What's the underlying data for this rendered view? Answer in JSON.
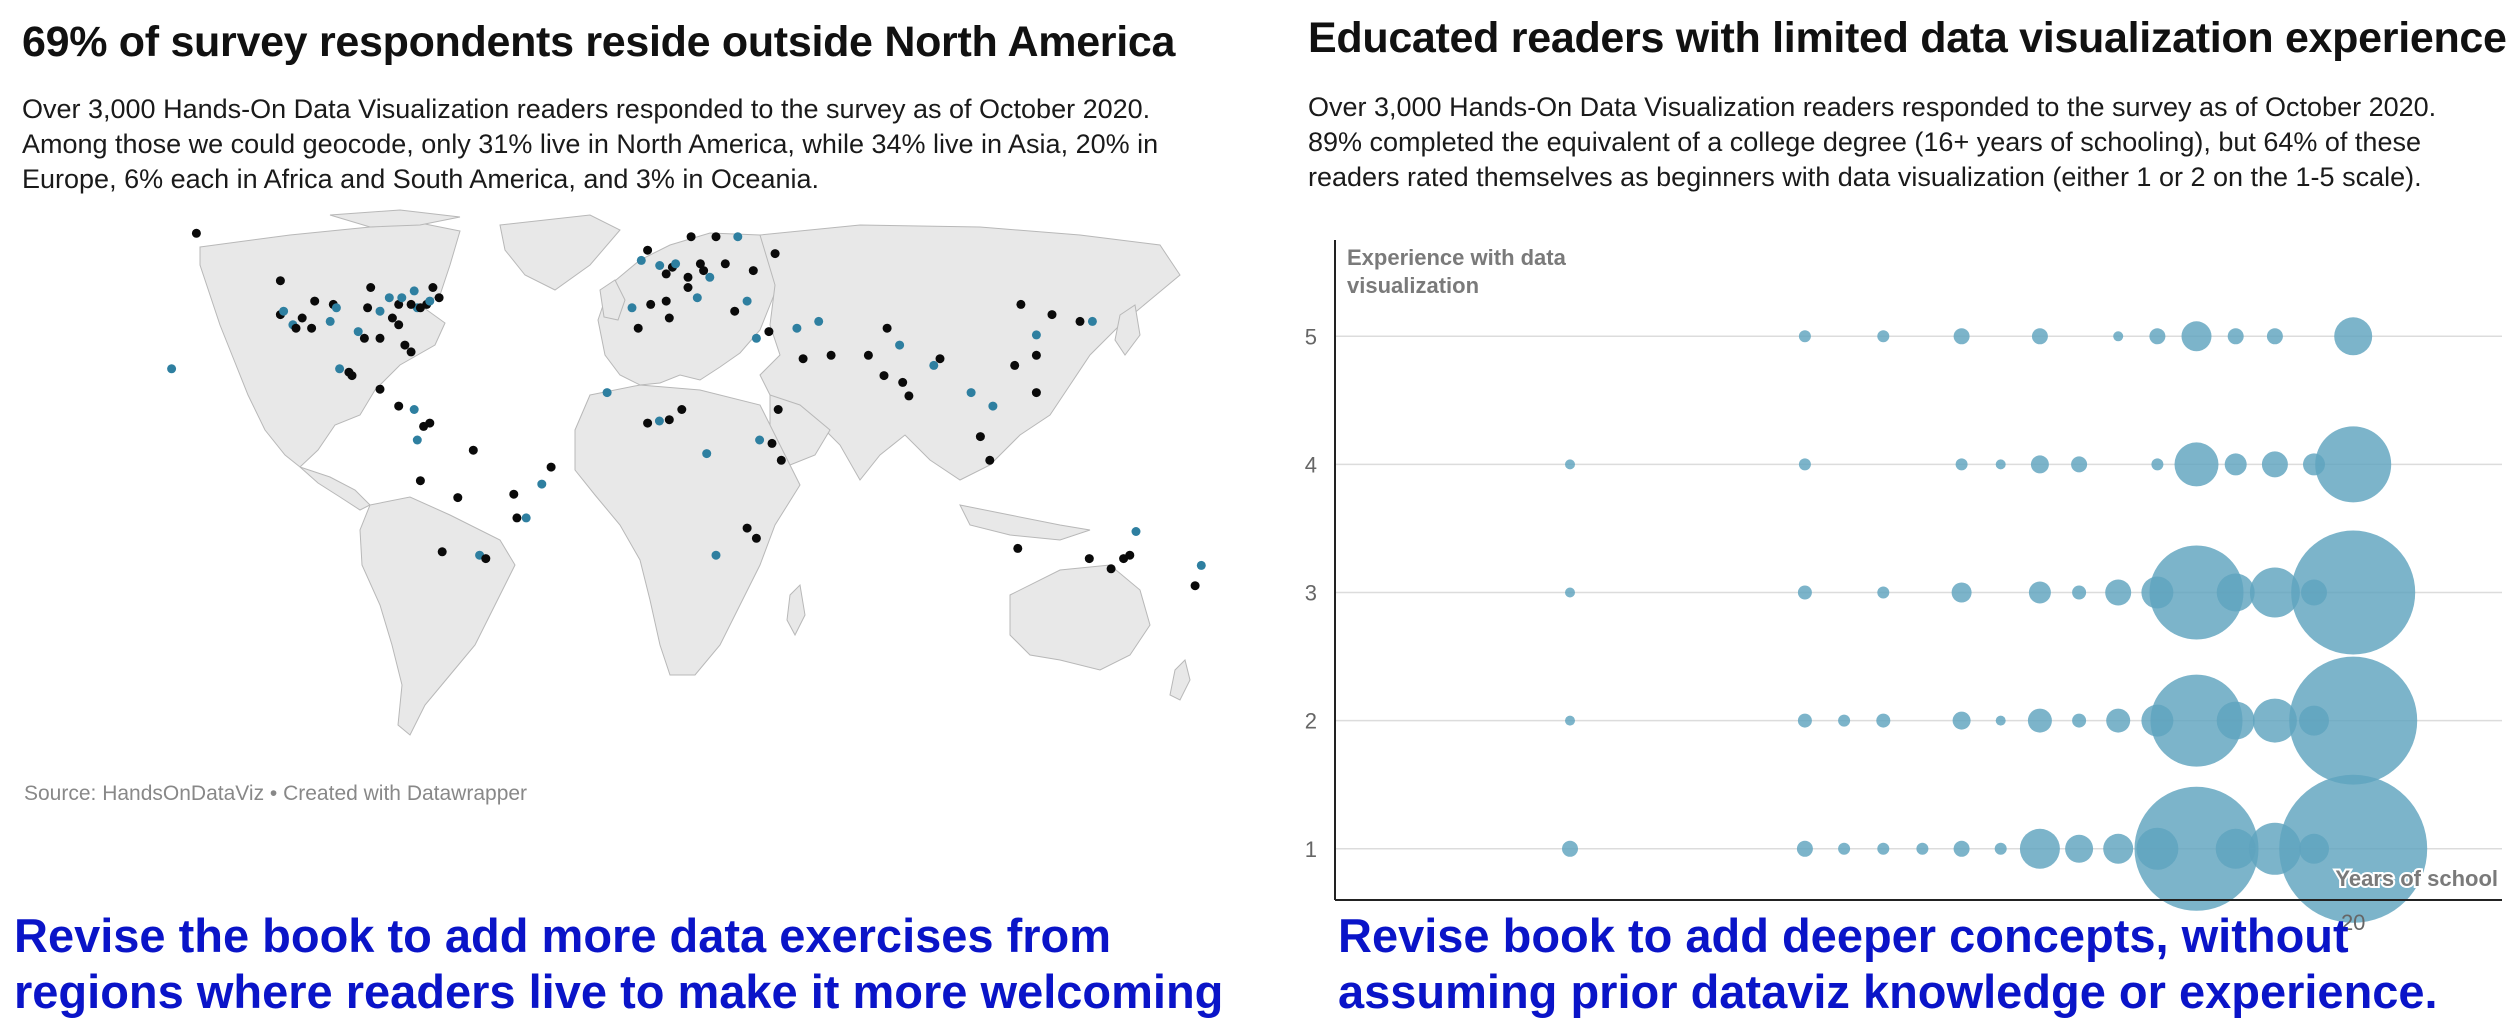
{
  "left": {
    "title": "69% of survey respondents reside outside North America",
    "description": [
      "Over 3,000 Hands-On Data Visualization readers responded to the survey as of October 2020.",
      "Among those we could geocode, only 31% live in North America, while 34% live in Asia, 20% in",
      "Europe, 6% each in Africa and South America, and 3% in Oceania."
    ],
    "source": "Source: HandsOnDataViz • Created with Datawrapper",
    "caption": [
      "Revise the book to add more data exercises from",
      "regions where readers live to make it more welcoming"
    ],
    "colors": {
      "land": "#e8e8e8",
      "dot_dark": "#0a0a0a",
      "dot_blue": "#2e7fa0"
    }
  },
  "right": {
    "title": "Educated readers with limited data visualization experience",
    "description": [
      "Over 3,000 Hands-On Data Visualization readers responded to the survey as of October 2020.",
      "89% completed the equivalent of a college degree (16+ years of schooling), but 64% of these",
      "readers rated themselves as beginners with data visualization (either 1 or 2 on the 1-5 scale)."
    ],
    "caption": [
      "Revise book to add deeper concepts, without",
      "assuming prior dataviz knowledge or experience."
    ]
  },
  "chart_data": [
    {
      "type": "scatter",
      "chart": "map",
      "title": "69% of survey respondents reside outside North America",
      "series": [
        {
          "region": "North America",
          "share_pct": 31
        },
        {
          "region": "Asia",
          "share_pct": 34
        },
        {
          "region": "Europe",
          "share_pct": 20
        },
        {
          "region": "Africa",
          "share_pct": 6
        },
        {
          "region": "South America",
          "share_pct": 6
        },
        {
          "region": "Oceania",
          "share_pct": 3
        }
      ],
      "points": [
        [
          -122,
          47
        ],
        [
          -118,
          34
        ],
        [
          -117,
          33
        ],
        [
          -122,
          37
        ],
        [
          -121,
          38
        ],
        [
          -112,
          33
        ],
        [
          -105,
          40
        ],
        [
          -97,
          32
        ],
        [
          -95,
          30
        ],
        [
          -90,
          30
        ],
        [
          -87,
          42
        ],
        [
          -84,
          34
        ],
        [
          -84,
          40
        ],
        [
          -83,
          42
        ],
        [
          -80,
          26
        ],
        [
          -82,
          28
        ],
        [
          -78,
          39
        ],
        [
          -77,
          39
        ],
        [
          -75,
          40
        ],
        [
          -74,
          41
        ],
        [
          -71,
          42
        ],
        [
          -73,
          45
        ],
        [
          -79,
          44
        ],
        [
          -80,
          40
        ],
        [
          -86,
          36
        ],
        [
          -90,
          38
        ],
        [
          -94,
          39
        ],
        [
          -93,
          45
        ],
        [
          -104,
          39
        ],
        [
          -111,
          41
        ],
        [
          -115,
          36
        ],
        [
          -106,
          35
        ],
        [
          -100,
          20
        ],
        [
          -99,
          19
        ],
        [
          -103,
          21
        ],
        [
          -90,
          15
        ],
        [
          -84,
          10
        ],
        [
          -79,
          9
        ],
        [
          -74,
          5
        ],
        [
          -76,
          4
        ],
        [
          -78,
          0
        ],
        [
          -77,
          -12
        ],
        [
          -70,
          -33
        ],
        [
          -58,
          -34
        ],
        [
          -56,
          -35
        ],
        [
          -46,
          -23
        ],
        [
          -43,
          -23
        ],
        [
          -47,
          -16
        ],
        [
          -35,
          -8
        ],
        [
          -38,
          -13
        ],
        [
          -60,
          -3
        ],
        [
          -65,
          -17
        ],
        [
          -0.1,
          51.5
        ],
        [
          2,
          49
        ],
        [
          4,
          51
        ],
        [
          5,
          52
        ],
        [
          9,
          48
        ],
        [
          13,
          52
        ],
        [
          16,
          48
        ],
        [
          21,
          52
        ],
        [
          14,
          50
        ],
        [
          12,
          42
        ],
        [
          9,
          45
        ],
        [
          -3,
          40
        ],
        [
          -9,
          39
        ],
        [
          2,
          41
        ],
        [
          24,
          38
        ],
        [
          28,
          41
        ],
        [
          18,
          60
        ],
        [
          10,
          60
        ],
        [
          25,
          60
        ],
        [
          30,
          50
        ],
        [
          37,
          55
        ],
        [
          -6,
          53
        ],
        [
          -4,
          56
        ],
        [
          35,
          32
        ],
        [
          44,
          33
        ],
        [
          46,
          24
        ],
        [
          55,
          25
        ],
        [
          51,
          35
        ],
        [
          67,
          25
        ],
        [
          73,
          33
        ],
        [
          77,
          28
        ],
        [
          72,
          19
        ],
        [
          80,
          13
        ],
        [
          88,
          22
        ],
        [
          78,
          17
        ],
        [
          90,
          24
        ],
        [
          100,
          14
        ],
        [
          103,
          1
        ],
        [
          106,
          -6
        ],
        [
          107,
          10
        ],
        [
          121,
          14
        ],
        [
          116,
          40
        ],
        [
          121,
          31
        ],
        [
          114,
          22
        ],
        [
          126,
          37
        ],
        [
          139,
          35
        ],
        [
          135,
          35
        ],
        [
          121,
          25
        ],
        [
          31,
          30
        ],
        [
          3,
          36
        ],
        [
          -7,
          33
        ],
        [
          -17,
          14
        ],
        [
          3,
          6
        ],
        [
          7,
          9
        ],
        [
          -0.2,
          5.6
        ],
        [
          38,
          9
        ],
        [
          36,
          -1
        ],
        [
          32,
          0
        ],
        [
          39,
          -6
        ],
        [
          28,
          -26
        ],
        [
          18,
          -34
        ],
        [
          31,
          -29
        ],
        [
          -4,
          5
        ],
        [
          15,
          -4
        ],
        [
          151,
          -34
        ],
        [
          145,
          -38
        ],
        [
          153,
          -27
        ],
        [
          115,
          -32
        ],
        [
          138,
          -35
        ],
        [
          174,
          -37
        ],
        [
          172,
          -43
        ],
        [
          149,
          -35
        ],
        [
          -157,
          21
        ],
        [
          -149,
          61
        ]
      ]
    },
    {
      "type": "scatter",
      "chart": "bubble",
      "title": "Educated readers with limited data visualization experience",
      "ylabel": "Experience with data visualization",
      "xlabel": "Years of school",
      "x_ticks": [
        20
      ],
      "y_ticks": [
        5,
        4,
        3,
        2,
        1
      ],
      "xlim": [
        7,
        21.9
      ],
      "ylim": [
        0.6,
        5.4
      ],
      "color": "#5fa3be",
      "points": [
        {
          "x": 13,
          "y": 5,
          "r": 6
        },
        {
          "x": 14,
          "y": 5,
          "r": 6
        },
        {
          "x": 15,
          "y": 5,
          "r": 8
        },
        {
          "x": 16,
          "y": 5,
          "r": 8
        },
        {
          "x": 17,
          "y": 5,
          "r": 5
        },
        {
          "x": 17.5,
          "y": 5,
          "r": 8
        },
        {
          "x": 18,
          "y": 5,
          "r": 15
        },
        {
          "x": 18.5,
          "y": 5,
          "r": 8
        },
        {
          "x": 19,
          "y": 5,
          "r": 8
        },
        {
          "x": 20,
          "y": 5,
          "r": 19
        },
        {
          "x": 10,
          "y": 4,
          "r": 5
        },
        {
          "x": 13,
          "y": 4,
          "r": 6
        },
        {
          "x": 15,
          "y": 4,
          "r": 6
        },
        {
          "x": 15.5,
          "y": 4,
          "r": 5
        },
        {
          "x": 16,
          "y": 4,
          "r": 9
        },
        {
          "x": 16.5,
          "y": 4,
          "r": 8
        },
        {
          "x": 17.5,
          "y": 4,
          "r": 6
        },
        {
          "x": 18,
          "y": 4,
          "r": 22
        },
        {
          "x": 18.5,
          "y": 4,
          "r": 11
        },
        {
          "x": 19,
          "y": 4,
          "r": 13
        },
        {
          "x": 19.5,
          "y": 4,
          "r": 11
        },
        {
          "x": 20,
          "y": 4,
          "r": 38
        },
        {
          "x": 10,
          "y": 3,
          "r": 5
        },
        {
          "x": 13,
          "y": 3,
          "r": 7
        },
        {
          "x": 14,
          "y": 3,
          "r": 6
        },
        {
          "x": 15,
          "y": 3,
          "r": 10
        },
        {
          "x": 16,
          "y": 3,
          "r": 11
        },
        {
          "x": 16.5,
          "y": 3,
          "r": 7
        },
        {
          "x": 17,
          "y": 3,
          "r": 13
        },
        {
          "x": 17.5,
          "y": 3,
          "r": 16
        },
        {
          "x": 18,
          "y": 3,
          "r": 47
        },
        {
          "x": 18.5,
          "y": 3,
          "r": 19
        },
        {
          "x": 19,
          "y": 3,
          "r": 25
        },
        {
          "x": 19.5,
          "y": 3,
          "r": 13
        },
        {
          "x": 20,
          "y": 3,
          "r": 62
        },
        {
          "x": 10,
          "y": 2,
          "r": 5
        },
        {
          "x": 13,
          "y": 2,
          "r": 7
        },
        {
          "x": 13.5,
          "y": 2,
          "r": 6
        },
        {
          "x": 14,
          "y": 2,
          "r": 7
        },
        {
          "x": 15,
          "y": 2,
          "r": 9
        },
        {
          "x": 15.5,
          "y": 2,
          "r": 5
        },
        {
          "x": 16,
          "y": 2,
          "r": 12
        },
        {
          "x": 16.5,
          "y": 2,
          "r": 7
        },
        {
          "x": 17,
          "y": 2,
          "r": 12
        },
        {
          "x": 17.5,
          "y": 2,
          "r": 16
        },
        {
          "x": 18,
          "y": 2,
          "r": 46
        },
        {
          "x": 18.5,
          "y": 2,
          "r": 19
        },
        {
          "x": 19,
          "y": 2,
          "r": 22
        },
        {
          "x": 19.5,
          "y": 2,
          "r": 15
        },
        {
          "x": 20,
          "y": 2,
          "r": 64
        },
        {
          "x": 10,
          "y": 1,
          "r": 8
        },
        {
          "x": 13,
          "y": 1,
          "r": 8
        },
        {
          "x": 13.5,
          "y": 1,
          "r": 6
        },
        {
          "x": 14,
          "y": 1,
          "r": 6
        },
        {
          "x": 14.5,
          "y": 1,
          "r": 6
        },
        {
          "x": 15,
          "y": 1,
          "r": 8
        },
        {
          "x": 15.5,
          "y": 1,
          "r": 6
        },
        {
          "x": 16,
          "y": 1,
          "r": 20
        },
        {
          "x": 16.5,
          "y": 1,
          "r": 14
        },
        {
          "x": 17,
          "y": 1,
          "r": 15
        },
        {
          "x": 17.5,
          "y": 1,
          "r": 21
        },
        {
          "x": 18,
          "y": 1,
          "r": 62
        },
        {
          "x": 18.5,
          "y": 1,
          "r": 20
        },
        {
          "x": 19,
          "y": 1,
          "r": 26
        },
        {
          "x": 19.5,
          "y": 1,
          "r": 15
        },
        {
          "x": 20,
          "y": 1,
          "r": 74
        }
      ]
    }
  ]
}
